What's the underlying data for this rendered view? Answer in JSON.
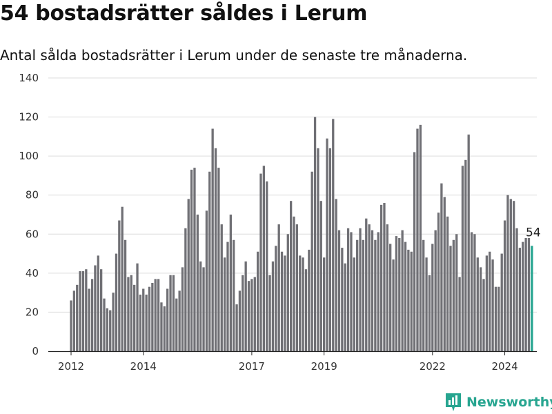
{
  "title": "54 bostadsrätter såldes i Lerum",
  "subtitle": "Antal sålda bostadsrätter i Lerum under de senaste tre månaderna.",
  "brand": {
    "name": "Newsworthy",
    "icon": "newsworthy-logo-icon",
    "color": "#27a590"
  },
  "chart_data": {
    "type": "bar",
    "title": "54 bostadsrätter såldes i Lerum",
    "subtitle": "Antal sålda bostadsrätter i Lerum under de senaste tre månaderna.",
    "xlabel": "",
    "ylabel": "",
    "ylim": [
      0,
      140
    ],
    "yticks": [
      0,
      20,
      40,
      60,
      80,
      100,
      120,
      140
    ],
    "xticks": [
      {
        "label": "2012",
        "index": 0
      },
      {
        "label": "2014",
        "index": 24
      },
      {
        "label": "2017",
        "index": 60
      },
      {
        "label": "2019",
        "index": 84
      },
      {
        "label": "2022",
        "index": 120
      },
      {
        "label": "2024",
        "index": 144
      }
    ],
    "grid": true,
    "bar_color": "#707075",
    "highlight_color": "#27a590",
    "highlight_last": true,
    "last_value_label": "54",
    "values": [
      26,
      31,
      34,
      41,
      41,
      42,
      32,
      37,
      44,
      49,
      42,
      27,
      22,
      21,
      30,
      50,
      67,
      74,
      57,
      38,
      39,
      34,
      45,
      29,
      32,
      29,
      33,
      35,
      37,
      37,
      25,
      23,
      32,
      39,
      39,
      27,
      31,
      43,
      63,
      78,
      93,
      94,
      70,
      46,
      43,
      72,
      92,
      114,
      104,
      94,
      65,
      48,
      56,
      70,
      57,
      24,
      31,
      39,
      46,
      36,
      37,
      38,
      51,
      91,
      95,
      87,
      39,
      46,
      54,
      65,
      51,
      49,
      60,
      77,
      69,
      65,
      49,
      48,
      42,
      52,
      92,
      120,
      104,
      77,
      48,
      109,
      104,
      119,
      78,
      62,
      53,
      45,
      63,
      61,
      48,
      57,
      63,
      57,
      68,
      65,
      62,
      57,
      61,
      75,
      76,
      65,
      55,
      47,
      59,
      58,
      62,
      56,
      52,
      51,
      102,
      114,
      116,
      57,
      48,
      39,
      55,
      62,
      71,
      86,
      79,
      69,
      54,
      57,
      60,
      38,
      95,
      98,
      111,
      61,
      60,
      48,
      43,
      37,
      49,
      51,
      47,
      33,
      33,
      50,
      67,
      80,
      78,
      77,
      63,
      53,
      56,
      58,
      58,
      54
    ]
  }
}
